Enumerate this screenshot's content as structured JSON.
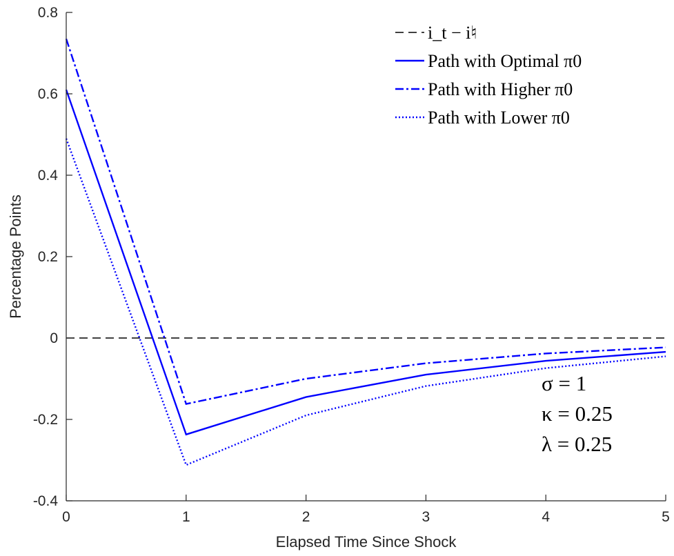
{
  "chart_data": {
    "type": "line",
    "title": "",
    "xlabel": "Elapsed Time Since Shock",
    "ylabel": "Percentage Points",
    "xlim": [
      0,
      5
    ],
    "ylim": [
      -0.4,
      0.8
    ],
    "x_ticks": [
      0,
      1,
      2,
      3,
      4,
      5
    ],
    "x_tick_labels": [
      "0",
      "1",
      "2",
      "3",
      "4",
      "5"
    ],
    "y_ticks": [
      -0.4,
      -0.2,
      0,
      0.2,
      0.4,
      0.6,
      0.8
    ],
    "y_tick_labels": [
      "-0.4",
      "-0.2",
      "0",
      "0.2",
      "0.4",
      "0.6",
      "0.8"
    ],
    "grid": false,
    "legend_position": "top-right",
    "series": [
      {
        "name": "i_t − i♮",
        "style": "dashed",
        "color": "#000000",
        "x": [
          0,
          5
        ],
        "y": [
          0,
          0
        ]
      },
      {
        "name": "Path with Optimal π0",
        "style": "solid",
        "color": "#0000FF",
        "x": [
          0,
          1,
          2,
          3,
          4,
          5
        ],
        "y": [
          0.61,
          -0.237,
          -0.145,
          -0.09,
          -0.056,
          -0.034
        ]
      },
      {
        "name": "Path with Higher π0",
        "style": "dashdot",
        "color": "#0000FF",
        "x": [
          0,
          1,
          2,
          3,
          4,
          5
        ],
        "y": [
          0.735,
          -0.162,
          -0.1,
          -0.062,
          -0.038,
          -0.023
        ]
      },
      {
        "name": "Path with Lower π0",
        "style": "dotted",
        "color": "#0000FF",
        "x": [
          0,
          1,
          2,
          3,
          4,
          5
        ],
        "y": [
          0.49,
          -0.312,
          -0.19,
          -0.118,
          -0.074,
          -0.045
        ]
      }
    ],
    "annotations": [
      "σ = 1",
      "κ = 0.25",
      "λ = 0.25"
    ]
  }
}
